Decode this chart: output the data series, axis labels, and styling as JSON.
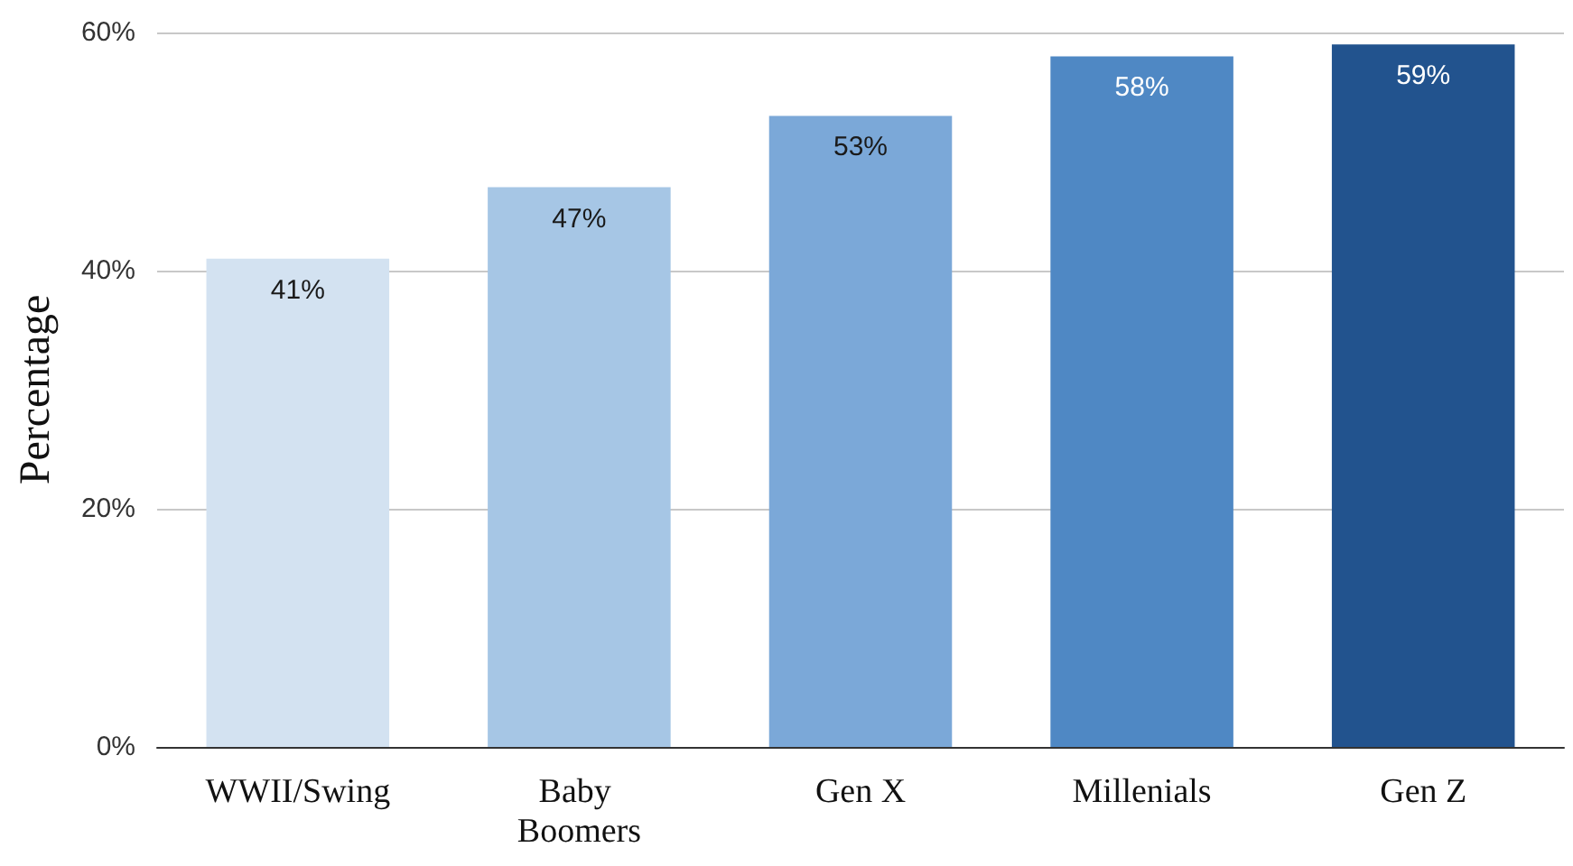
{
  "chart_data": {
    "type": "bar",
    "ylabel": "Percentage",
    "categories": [
      "WWII/Swing",
      "Baby Boomers",
      "Gen X",
      "Millenials",
      "Gen Z"
    ],
    "values": [
      41,
      47,
      53,
      58,
      59
    ],
    "value_labels": [
      "41%",
      "47%",
      "53%",
      "58%",
      "59%"
    ],
    "colors": [
      "#d3e2f1",
      "#a6c6e5",
      "#7ba8d8",
      "#4f88c4",
      "#22538e"
    ],
    "ylim": [
      0,
      60
    ],
    "yticks": [
      {
        "value": 0,
        "label": "0%"
      },
      {
        "value": 20,
        "label": "20%"
      },
      {
        "value": 40,
        "label": "40%"
      },
      {
        "value": 60,
        "label": "60%"
      }
    ],
    "grid": "y"
  }
}
